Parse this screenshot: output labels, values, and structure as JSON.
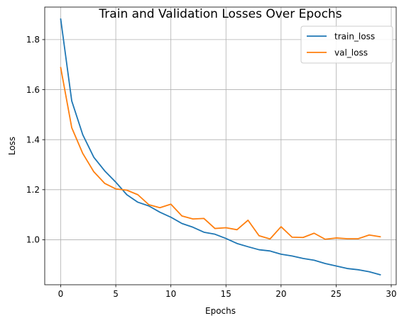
{
  "chart_data": {
    "type": "line",
    "title": "Train and Validation Losses Over Epochs",
    "xlabel": "Epochs",
    "ylabel": "Loss",
    "xlim": [
      -1.45,
      30.45
    ],
    "ylim": [
      0.82,
      1.93
    ],
    "xticks": [
      0,
      5,
      10,
      15,
      20,
      25,
      30
    ],
    "yticks": [
      1.0,
      1.2,
      1.4,
      1.6,
      1.8
    ],
    "grid": true,
    "legend_position": "top-right",
    "x": [
      0,
      1,
      2,
      3,
      4,
      5,
      6,
      7,
      8,
      9,
      10,
      11,
      12,
      13,
      14,
      15,
      16,
      17,
      18,
      19,
      20,
      21,
      22,
      23,
      24,
      25,
      26,
      27,
      28,
      29
    ],
    "series": [
      {
        "name": "train_loss",
        "color": "#1f77b4",
        "values": [
          1.882,
          1.555,
          1.42,
          1.33,
          1.275,
          1.23,
          1.18,
          1.15,
          1.135,
          1.11,
          1.09,
          1.065,
          1.05,
          1.03,
          1.022,
          1.005,
          0.985,
          0.972,
          0.96,
          0.955,
          0.942,
          0.935,
          0.925,
          0.918,
          0.905,
          0.895,
          0.885,
          0.88,
          0.872,
          0.86
        ]
      },
      {
        "name": "val_loss",
        "color": "#ff7f0e",
        "values": [
          1.688,
          1.448,
          1.345,
          1.272,
          1.225,
          1.203,
          1.198,
          1.18,
          1.14,
          1.128,
          1.142,
          1.095,
          1.083,
          1.085,
          1.045,
          1.048,
          1.04,
          1.078,
          1.016,
          1.003,
          1.052,
          1.01,
          1.009,
          1.026,
          1.002,
          1.007,
          1.004,
          1.004,
          1.019,
          1.012
        ]
      }
    ]
  }
}
